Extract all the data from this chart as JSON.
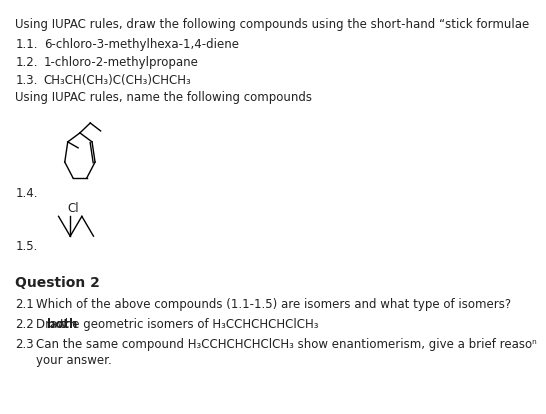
{
  "title_line": "Using IUPAC rules, draw the following compounds using the short-hand “stick formulae",
  "item_11_num": "1.1.",
  "item_11_text": "6-chloro-3-methylhexa-1,4-diene",
  "item_12_num": "1.2.",
  "item_12_text": "1-chloro-2-methylpropane",
  "item_13_num": "1.3.",
  "item_13_text": "CH₃CH(CH₃)C(CH₃)CHCH₃",
  "naming_line": "Using IUPAC rules, name the following compounds",
  "label_14": "1.4.",
  "label_15": "1.5.",
  "q2_title": "Question 2",
  "q21_num": "2.1",
  "q21_text": "Which of the above compounds (1.1-1.5) are isomers and what type of isomers?",
  "q22_num": "2.2",
  "q22_text1": "Draw ",
  "q22_bold": "both",
  "q22_text2": " the geometric isomers of H₃CCHCHCHCₗCH₃",
  "q22_text2b": " the geometric isomers of H₃CCHCHCHClCH₃",
  "q23_num": "2.3",
  "q23_text": "Can the same compound H₃CCHCHCHClCH₃ show enantiomerism, give a brief reaso",
  "q23_text2": "your answer.",
  "bg_color": "#ffffff",
  "text_color": "#222222",
  "fs": 8.5,
  "fs_bold": 10.0
}
